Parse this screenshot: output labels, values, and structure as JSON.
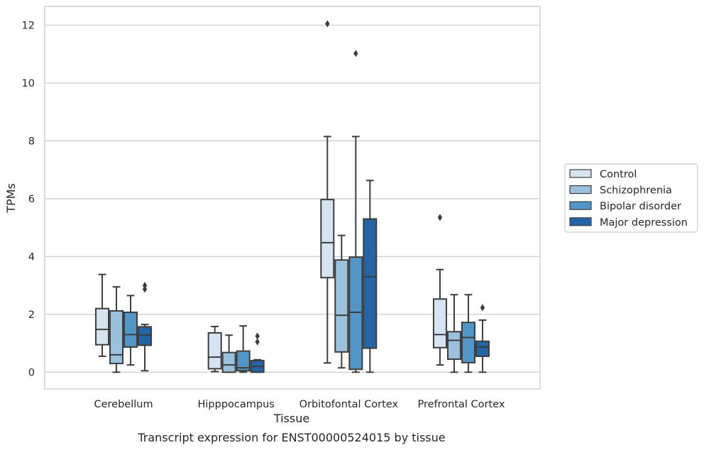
{
  "chart_data": {
    "type": "box",
    "xlabel": "Tissue",
    "ylabel": "TPMs",
    "caption": "Transcript expression for ENST00000524015 by tissue",
    "ylim": [
      -0.58,
      12.65
    ],
    "yticks": [
      0,
      2,
      4,
      6,
      8,
      10,
      12
    ],
    "grid": "horizontal",
    "legend_position": "right",
    "categories": [
      "Cerebellum",
      "Hipppocampus",
      "Orbitofontal Cortex",
      "Prefrontal Cortex"
    ],
    "series": [
      {
        "name": "Control",
        "color": "#d6e4f2",
        "boxes": [
          {
            "whislo": 0.55,
            "q1": 0.95,
            "med": 1.48,
            "q3": 2.2,
            "whishi": 3.38,
            "fliers": []
          },
          {
            "whislo": 0.02,
            "q1": 0.12,
            "med": 0.52,
            "q3": 1.36,
            "whishi": 1.58,
            "fliers": []
          },
          {
            "whislo": 0.32,
            "q1": 3.27,
            "med": 4.48,
            "q3": 5.97,
            "whishi": 8.15,
            "fliers": [
              12.05
            ]
          },
          {
            "whislo": 0.25,
            "q1": 0.85,
            "med": 1.3,
            "q3": 2.53,
            "whishi": 3.55,
            "fliers": [
              5.35
            ]
          }
        ]
      },
      {
        "name": "Schizophrenia",
        "color": "#9bc1dc",
        "boxes": [
          {
            "whislo": 0.0,
            "q1": 0.3,
            "med": 0.6,
            "q3": 2.12,
            "whishi": 2.95,
            "fliers": []
          },
          {
            "whislo": 0.0,
            "q1": 0.0,
            "med": 0.25,
            "q3": 0.68,
            "whishi": 1.28,
            "fliers": []
          },
          {
            "whislo": 0.15,
            "q1": 0.7,
            "med": 1.97,
            "q3": 3.88,
            "whishi": 4.73,
            "fliers": []
          },
          {
            "whislo": 0.0,
            "q1": 0.45,
            "med": 1.1,
            "q3": 1.4,
            "whishi": 2.68,
            "fliers": []
          }
        ]
      },
      {
        "name": "Bipolar disorder",
        "color": "#5296c8",
        "boxes": [
          {
            "whislo": 0.25,
            "q1": 0.87,
            "med": 1.3,
            "q3": 2.07,
            "whishi": 2.65,
            "fliers": []
          },
          {
            "whislo": 0.0,
            "q1": 0.05,
            "med": 0.15,
            "q3": 0.73,
            "whishi": 1.6,
            "fliers": []
          },
          {
            "whislo": 0.0,
            "q1": 0.1,
            "med": 2.07,
            "q3": 3.98,
            "whishi": 8.15,
            "fliers": [
              11.02
            ]
          },
          {
            "whislo": 0.0,
            "q1": 0.33,
            "med": 1.2,
            "q3": 1.72,
            "whishi": 2.68,
            "fliers": []
          }
        ]
      },
      {
        "name": "Major depression",
        "color": "#2365a6",
        "boxes": [
          {
            "whislo": 0.05,
            "q1": 0.93,
            "med": 1.28,
            "q3": 1.57,
            "whishi": 1.65,
            "fliers": [
              2.87,
              3.0
            ]
          },
          {
            "whislo": 0.0,
            "q1": 0.0,
            "med": 0.2,
            "q3": 0.4,
            "whishi": 0.43,
            "fliers": [
              1.05,
              1.25
            ]
          },
          {
            "whislo": 0.0,
            "q1": 0.83,
            "med": 3.3,
            "q3": 5.3,
            "whishi": 6.63,
            "fliers": []
          },
          {
            "whislo": 0.0,
            "q1": 0.55,
            "med": 0.87,
            "q3": 1.07,
            "whishi": 1.8,
            "fliers": [
              2.23
            ]
          }
        ]
      }
    ]
  }
}
